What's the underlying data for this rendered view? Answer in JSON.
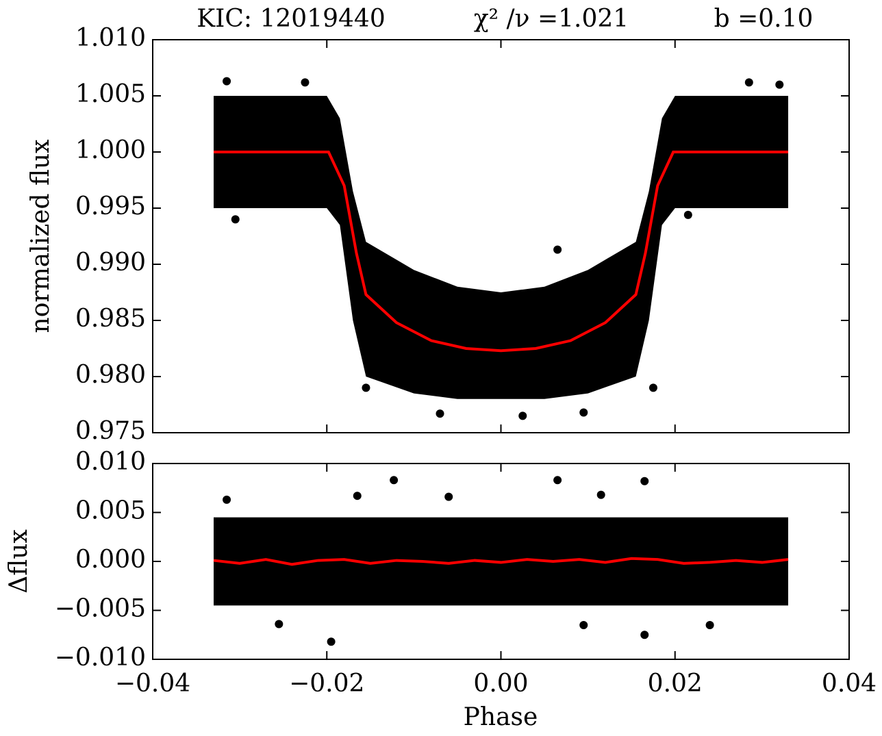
{
  "chart_data": [
    {
      "type": "scatter",
      "title": [
        "KIC:  12019440",
        "χ² /ν =1.021",
        "b =0.10"
      ],
      "ylabel": "normalized  flux",
      "xlim": [
        -0.04,
        0.04
      ],
      "xticks": [
        -0.04,
        -0.02,
        0,
        0.02,
        0.04
      ],
      "ylim": [
        0.975,
        1.01
      ],
      "yticks": [
        {
          "value": 0.975,
          "label": "0.975"
        },
        {
          "value": 0.98,
          "label": "0.980"
        },
        0.985,
        {
          "value": 0.99,
          "label": "0.990"
        },
        0.995,
        {
          "value": 1.0,
          "label": "1.000"
        },
        1.005,
        {
          "value": 1.01,
          "label": "1.010"
        }
      ],
      "series": [
        {
          "type": "band",
          "color": "#000000",
          "x": [
            -0.033,
            -0.02,
            -0.0185,
            -0.017,
            -0.0155,
            -0.01,
            -0.005,
            0,
            0.005,
            0.01,
            0.0155,
            0.017,
            0.0185,
            0.02,
            0.033
          ],
          "upper": [
            1.005,
            1.005,
            1.003,
            0.9965,
            0.992,
            0.9895,
            0.988,
            0.9875,
            0.988,
            0.9895,
            0.992,
            0.9965,
            1.003,
            1.005,
            1.005
          ],
          "lower": [
            0.995,
            0.995,
            0.9935,
            0.985,
            0.98,
            0.9785,
            0.978,
            0.978,
            0.978,
            0.9785,
            0.98,
            0.985,
            0.9935,
            0.995,
            0.995
          ]
        },
        {
          "type": "points",
          "color": "#000000",
          "x": [
            -0.0315,
            -0.0225,
            -0.0305,
            -0.0155,
            -0.007,
            0.0065,
            0.0095,
            0.0285,
            0.032,
            0.0025,
            0.0175,
            0.0215
          ],
          "values": [
            1.0063,
            1.0062,
            0.994,
            0.979,
            0.9767,
            0.9913,
            0.9768,
            1.0062,
            1.006,
            0.9765,
            0.979,
            0.9944
          ]
        },
        {
          "type": "line",
          "color": "#ff0000",
          "x": [
            -0.033,
            -0.0198,
            -0.018,
            -0.0166,
            -0.0155,
            -0.012,
            -0.008,
            -0.004,
            0,
            0.004,
            0.008,
            0.012,
            0.0155,
            0.0166,
            0.018,
            0.0198,
            0.033
          ],
          "values": [
            1,
            1,
            0.997,
            0.991,
            0.9873,
            0.9848,
            0.9832,
            0.9825,
            0.9823,
            0.9825,
            0.9832,
            0.9848,
            0.9873,
            0.991,
            0.997,
            1,
            1
          ]
        }
      ]
    },
    {
      "type": "scatter",
      "ylabel": "Δflux",
      "xlabel": "Phase",
      "xlim": [
        -0.04,
        0.04
      ],
      "xticks": [
        {
          "value": -0.04,
          "label": "−0.04"
        },
        {
          "value": -0.02,
          "label": "−0.02"
        },
        {
          "value": 0,
          "label": "0.00"
        },
        0.02,
        0.04
      ],
      "ylim": [
        -0.01,
        0.01
      ],
      "yticks": [
        {
          "value": -0.01,
          "label": "−0.010"
        },
        {
          "value": -0.005,
          "label": "−0.005"
        },
        {
          "value": 0,
          "label": "0.000"
        },
        0.005,
        {
          "value": 0.01,
          "label": "0.010"
        }
      ],
      "series": [
        {
          "type": "band",
          "color": "#000000",
          "x": [
            -0.033,
            0.033
          ],
          "upper": [
            0.0045,
            0.0045
          ],
          "lower": [
            -0.0045,
            -0.0045
          ]
        },
        {
          "type": "points",
          "color": "#000000",
          "x": [
            -0.0315,
            -0.0123,
            -0.0195,
            -0.0165,
            0.0065,
            0.0165,
            0.0115,
            0.0165,
            0.0095,
            -0.0255,
            0.024,
            -0.006
          ],
          "values": [
            0.0063,
            0.0083,
            -0.0082,
            0.0067,
            0.0083,
            0.0082,
            0.0068,
            -0.0075,
            -0.0065,
            -0.0064,
            -0.0065,
            0.0066
          ]
        },
        {
          "type": "line",
          "color": "#ff0000",
          "x": [
            -0.033,
            -0.03,
            -0.027,
            -0.024,
            -0.021,
            -0.018,
            -0.015,
            -0.012,
            -0.009,
            -0.006,
            -0.003,
            0,
            0.003,
            0.006,
            0.009,
            0.012,
            0.015,
            0.018,
            0.021,
            0.024,
            0.027,
            0.03,
            0.033
          ],
          "values": [
            0.0001,
            -0.0002,
            0.0002,
            -0.0003,
            0.0001,
            0.0002,
            -0.0002,
            0.0001,
            0.0,
            -0.0002,
            0.0001,
            -0.0001,
            0.0002,
            0.0,
            0.0002,
            -0.0001,
            0.0003,
            0.0002,
            -0.0002,
            -0.0001,
            0.0001,
            -0.0001,
            0.0002
          ]
        }
      ]
    }
  ]
}
